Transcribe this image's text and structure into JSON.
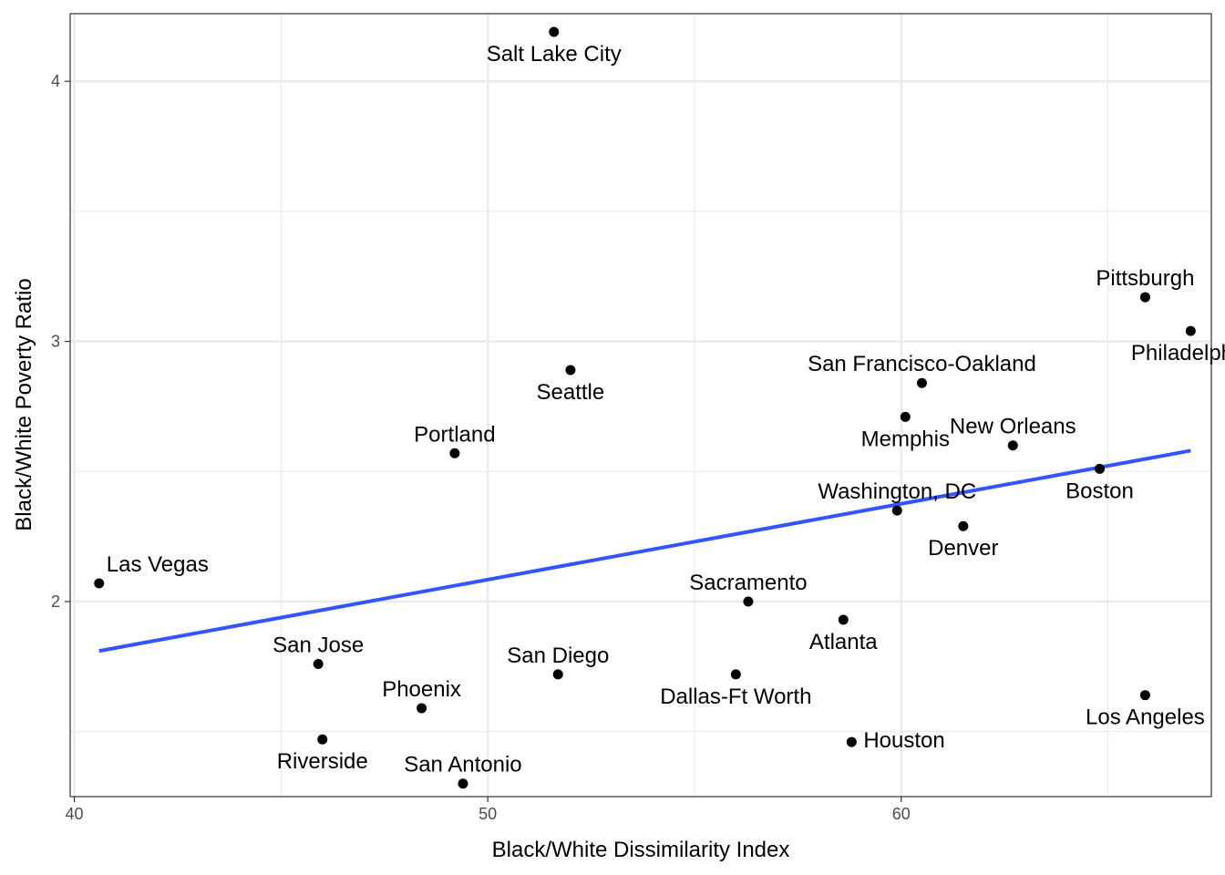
{
  "chart_data": {
    "type": "scatter",
    "xlabel": "Black/White Dissimilarity Index",
    "ylabel": "Black/White Poverty Ratio",
    "xlim": [
      39.9,
      67.5
    ],
    "ylim": [
      1.25,
      4.26
    ],
    "x_ticks": [
      40,
      50,
      60
    ],
    "y_ticks": [
      2,
      3,
      4
    ],
    "x_minor_ticks": [
      45,
      55,
      65
    ],
    "y_minor_ticks": [
      1.5,
      2.5,
      3.5
    ],
    "grid": true,
    "colors": {
      "points": "#000000",
      "trend_line": "#3355ff",
      "grid": "#ebebeb",
      "panel_border": "#333333"
    },
    "trend_line": {
      "x": [
        40.6,
        67.0
      ],
      "y": [
        1.81,
        2.58
      ]
    },
    "points": [
      {
        "label": "Salt Lake City",
        "x": 51.6,
        "y": 4.19,
        "label_pos": "below"
      },
      {
        "label": "Pittsburgh",
        "x": 65.9,
        "y": 3.17,
        "label_pos": "above"
      },
      {
        "label": "Philadelphia",
        "x": 67.0,
        "y": 3.04,
        "label_pos": "below"
      },
      {
        "label": "San Francisco-Oakland",
        "x": 60.5,
        "y": 2.84,
        "label_pos": "above"
      },
      {
        "label": "Seattle",
        "x": 52.0,
        "y": 2.89,
        "label_pos": "below"
      },
      {
        "label": "Memphis",
        "x": 60.1,
        "y": 2.71,
        "label_pos": "below"
      },
      {
        "label": "New Orleans",
        "x": 62.7,
        "y": 2.6,
        "label_pos": "above"
      },
      {
        "label": "Portland",
        "x": 49.2,
        "y": 2.57,
        "label_pos": "above"
      },
      {
        "label": "Boston",
        "x": 64.8,
        "y": 2.51,
        "label_pos": "below"
      },
      {
        "label": "Washington, DC",
        "x": 59.9,
        "y": 2.35,
        "label_pos": "above"
      },
      {
        "label": "Denver",
        "x": 61.5,
        "y": 2.29,
        "label_pos": "below"
      },
      {
        "label": "Las Vegas",
        "x": 40.6,
        "y": 2.07,
        "label_pos": "above-right"
      },
      {
        "label": "Sacramento",
        "x": 56.3,
        "y": 2.0,
        "label_pos": "above"
      },
      {
        "label": "Atlanta",
        "x": 58.6,
        "y": 1.93,
        "label_pos": "below"
      },
      {
        "label": "San Jose",
        "x": 45.9,
        "y": 1.76,
        "label_pos": "above"
      },
      {
        "label": "San Diego",
        "x": 51.7,
        "y": 1.72,
        "label_pos": "above"
      },
      {
        "label": "Dallas-Ft Worth",
        "x": 56.0,
        "y": 1.72,
        "label_pos": "below"
      },
      {
        "label": "Los Angeles",
        "x": 65.9,
        "y": 1.64,
        "label_pos": "below"
      },
      {
        "label": "Phoenix",
        "x": 48.4,
        "y": 1.59,
        "label_pos": "above"
      },
      {
        "label": "Riverside",
        "x": 46.0,
        "y": 1.47,
        "label_pos": "below"
      },
      {
        "label": "Houston",
        "x": 58.8,
        "y": 1.46,
        "label_pos": "right"
      },
      {
        "label": "San Antonio",
        "x": 49.4,
        "y": 1.3,
        "label_pos": "above"
      }
    ]
  }
}
